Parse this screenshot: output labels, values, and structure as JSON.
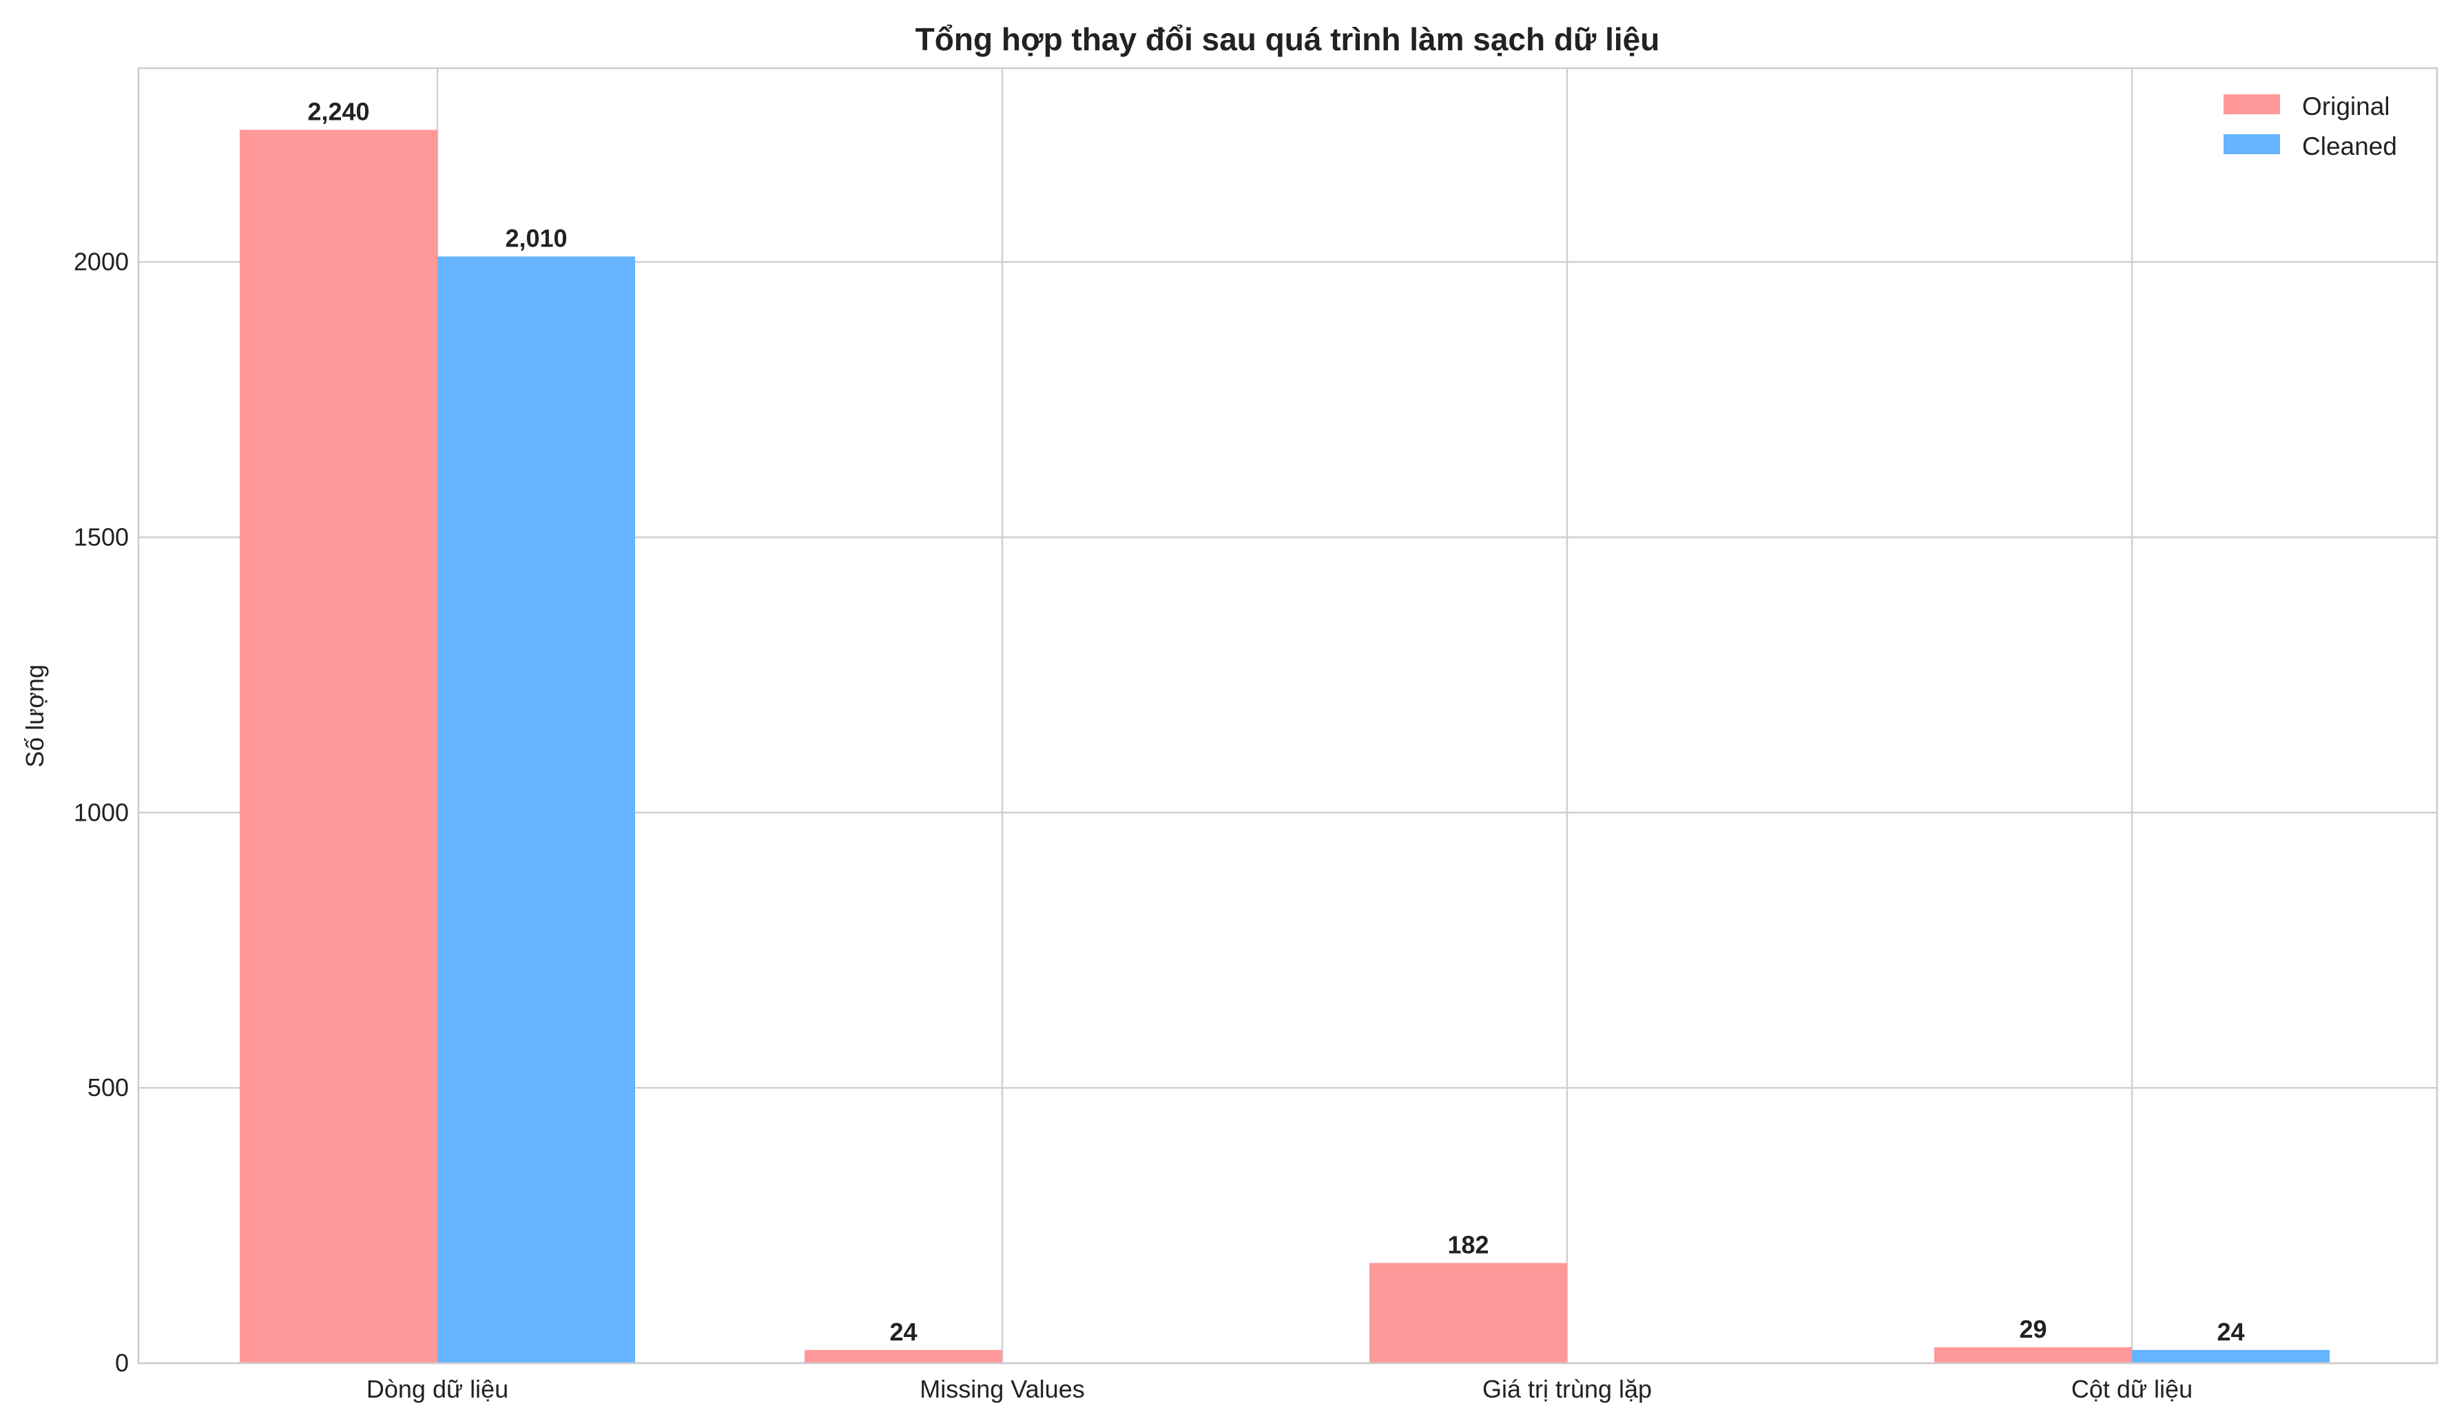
{
  "chart_data": {
    "type": "bar",
    "title": "Tổng hợp thay đổi sau quá trình làm sạch dữ liệu",
    "xlabel": "",
    "ylabel": "Số lượng",
    "categories": [
      "Dòng dữ liệu",
      "Missing Values",
      "Giá trị trùng lặp",
      "Cột dữ liệu"
    ],
    "series": [
      {
        "name": "Original",
        "color": "#ff9999",
        "values": [
          2240,
          24,
          182,
          29
        ],
        "labels": [
          "2,240",
          "24",
          "182",
          "29"
        ]
      },
      {
        "name": "Cleaned",
        "color": "#66b3ff",
        "values": [
          2010,
          0,
          0,
          24
        ],
        "labels": [
          "2,010",
          "",
          "",
          "24"
        ]
      }
    ],
    "ylim": [
      0,
      2352
    ],
    "yticks": [
      0,
      500,
      1000,
      1500,
      2000
    ],
    "ytick_labels": [
      "0",
      "500",
      "1000",
      "1500",
      "2000"
    ],
    "grid": true,
    "legend_position": "top-right"
  }
}
